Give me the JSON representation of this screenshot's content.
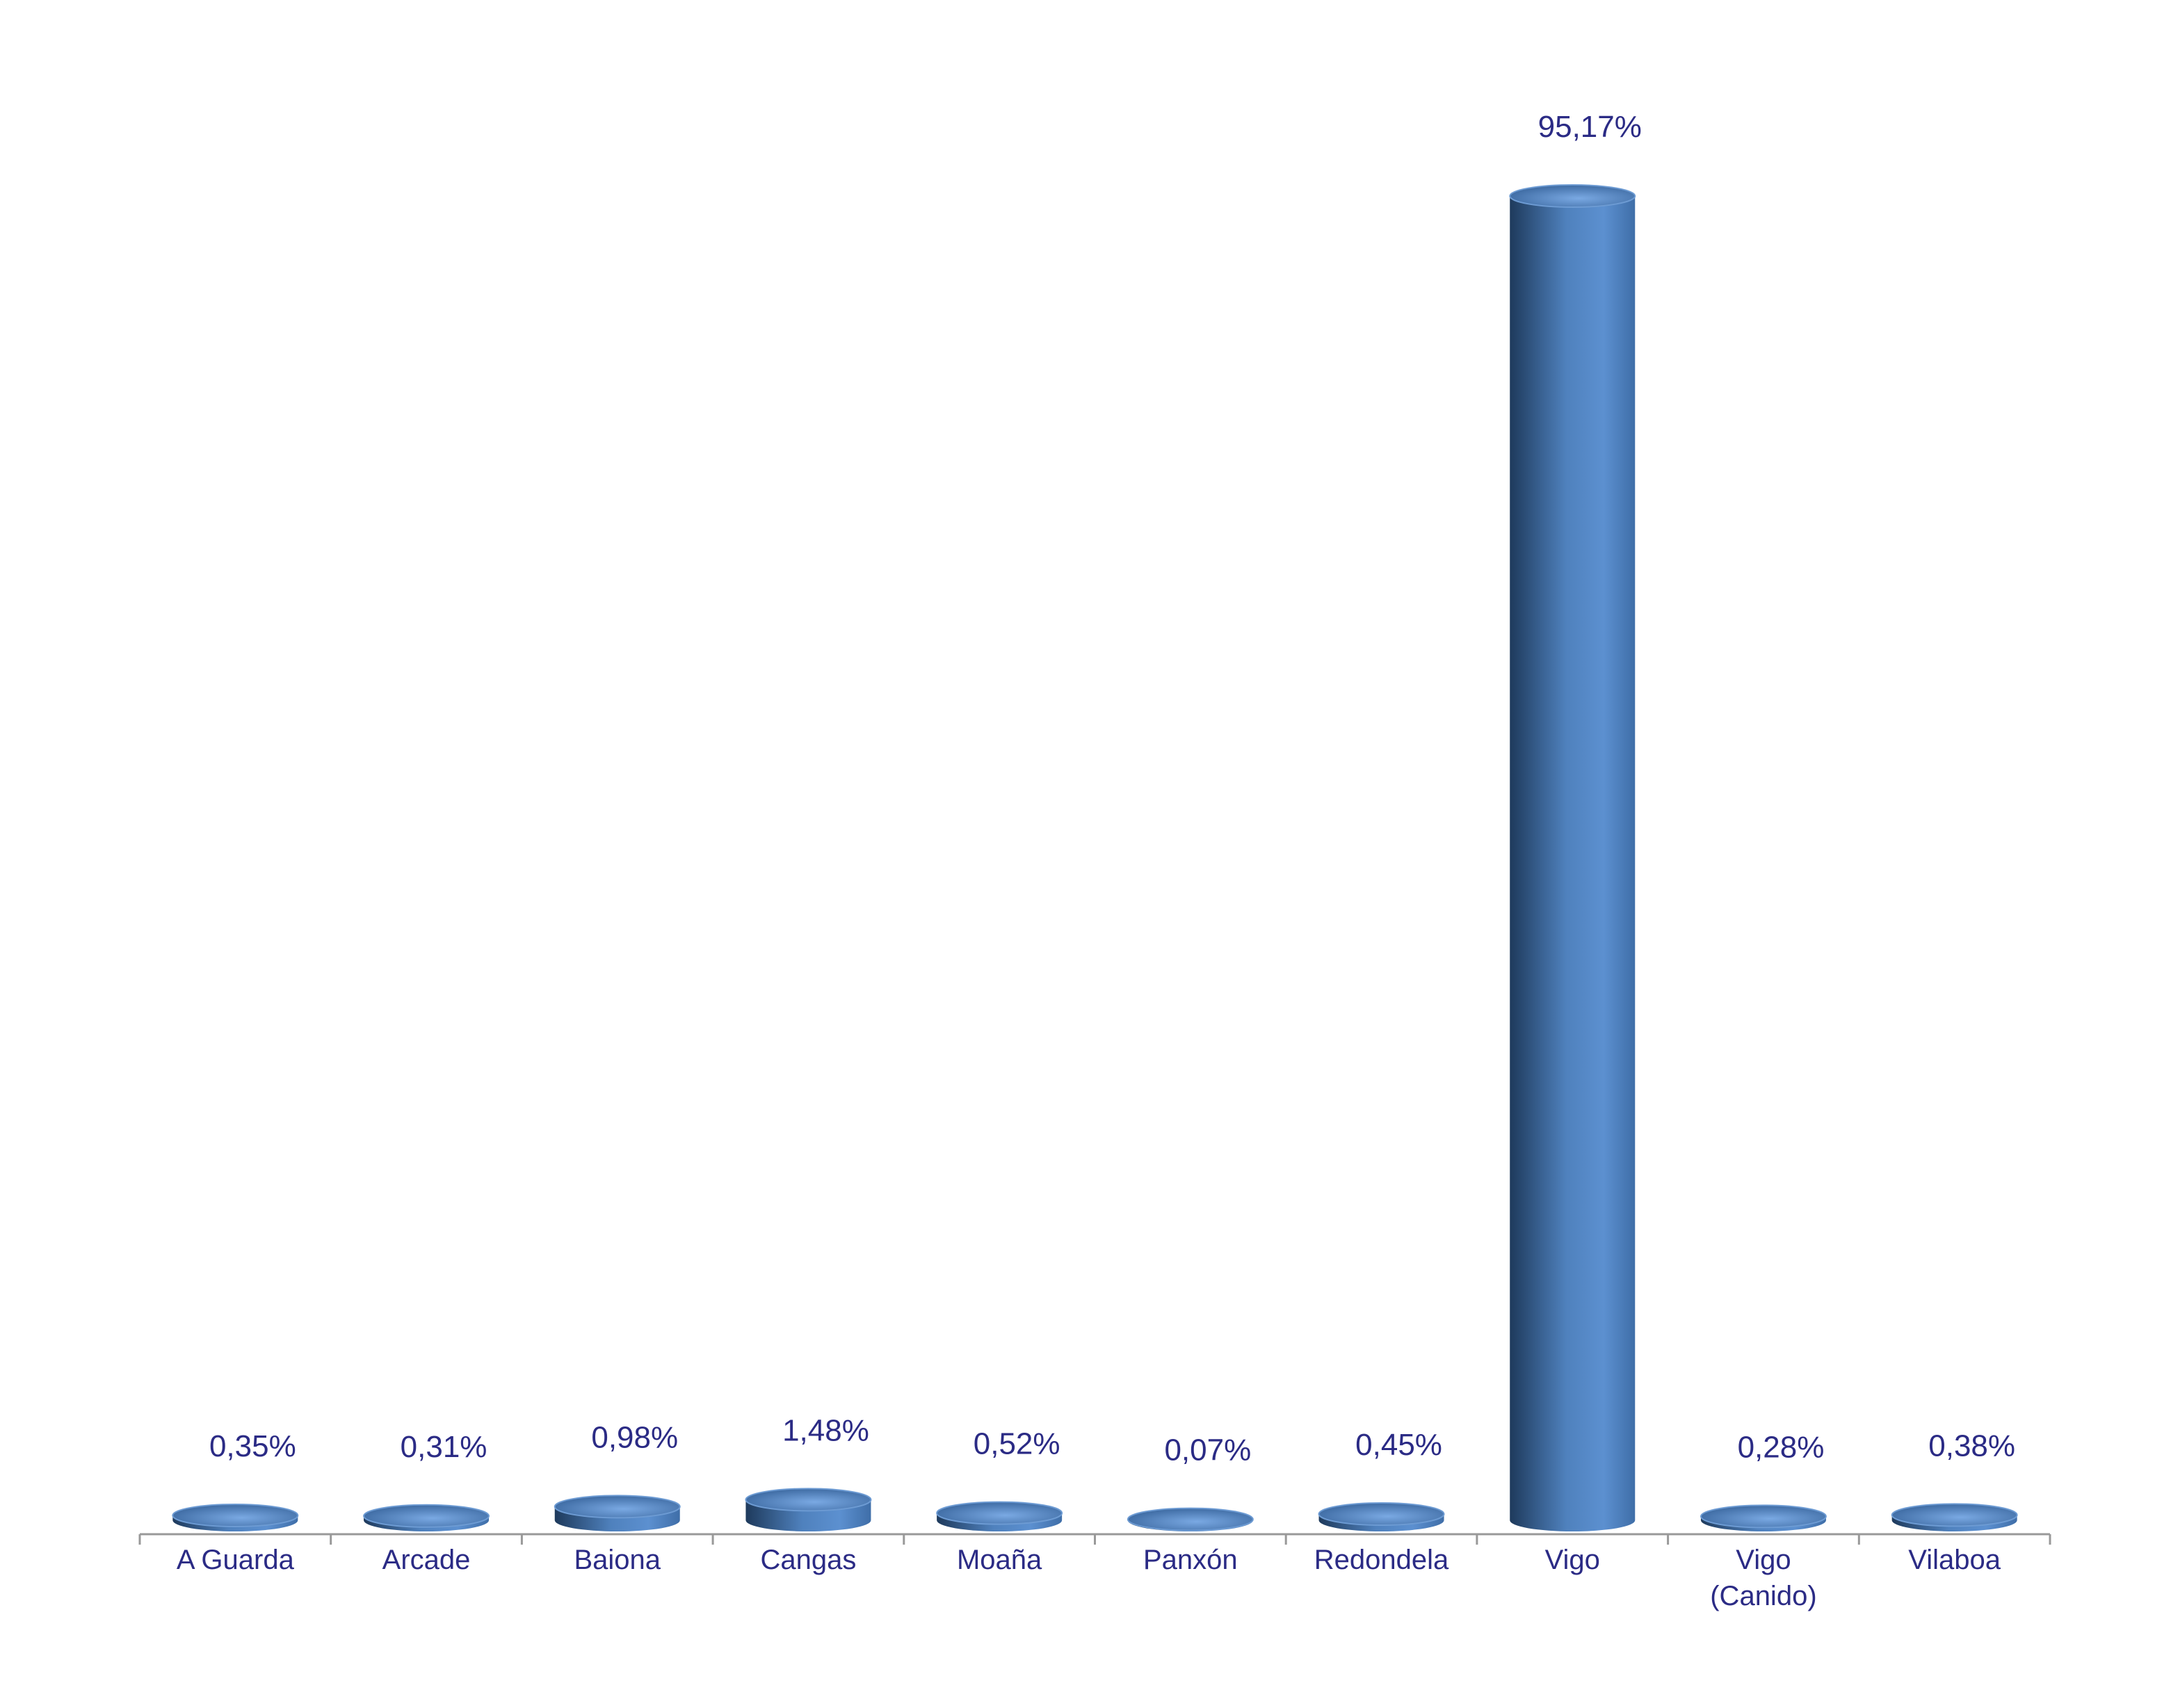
{
  "chart_data": {
    "type": "bar",
    "categories": [
      "A Guarda",
      "Arcade",
      "Baiona",
      "Cangas",
      "Moaña",
      "Panxón",
      "Redondela",
      "Vigo",
      "Vigo (Canido)",
      "Vilaboa"
    ],
    "values": [
      0.35,
      0.31,
      0.98,
      1.48,
      0.52,
      0.07,
      0.45,
      95.17,
      0.28,
      0.38
    ],
    "value_labels": [
      "0,35%",
      "0,31%",
      "0,98%",
      "1,48%",
      "0,52%",
      "0,07%",
      "0,45%",
      "95,17%",
      "0,28%",
      "0,38%"
    ],
    "color": "#4f81bd"
  }
}
